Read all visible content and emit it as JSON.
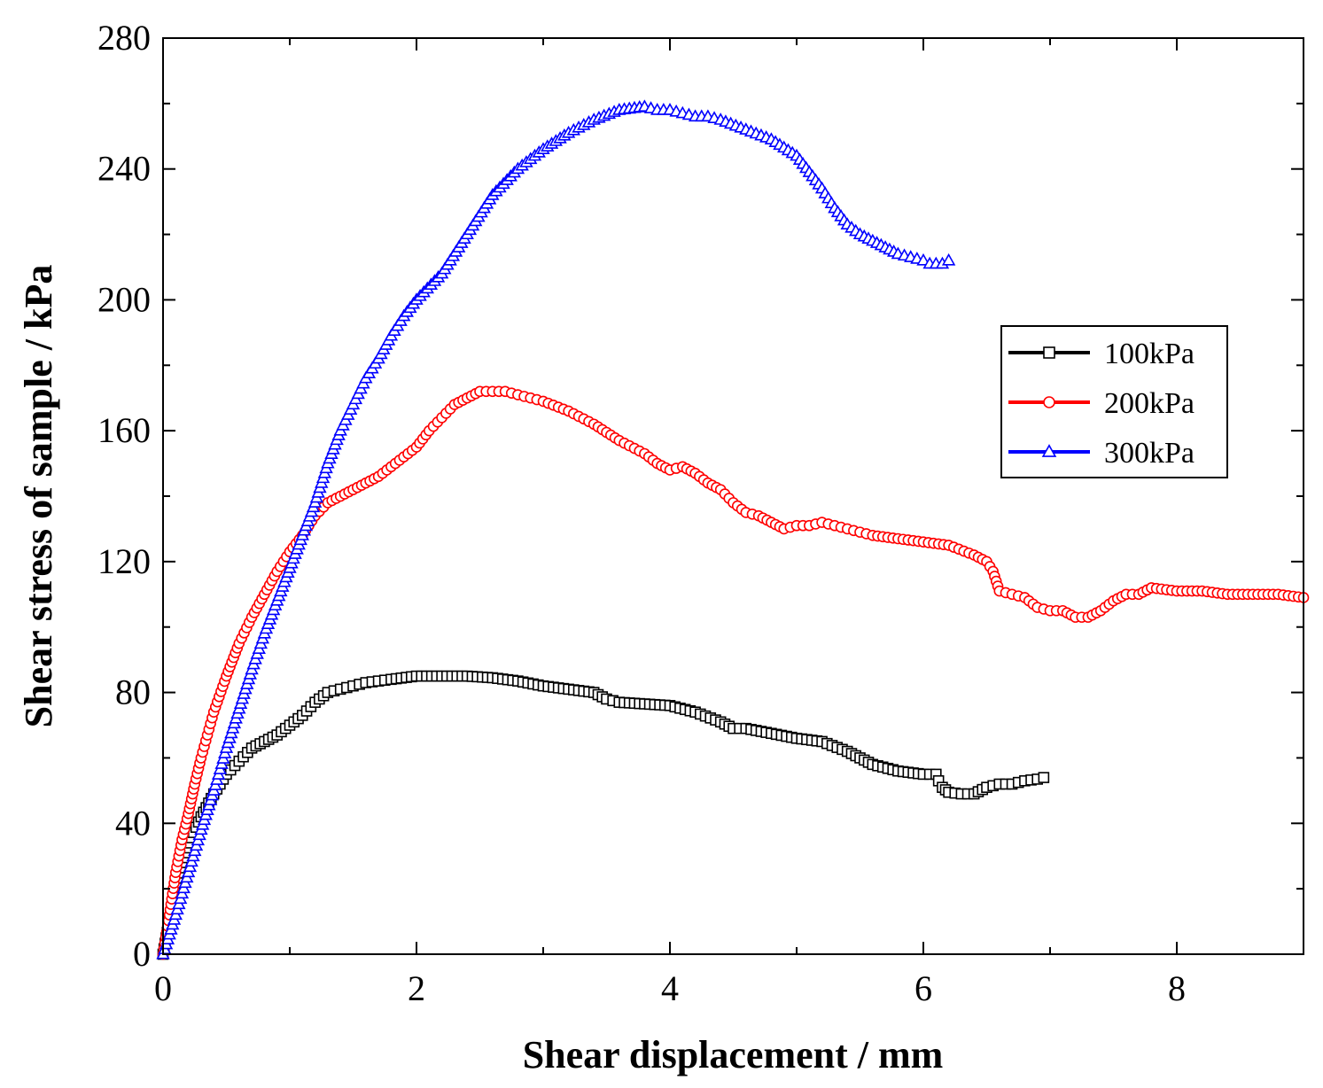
{
  "chart_data": {
    "type": "line",
    "title": "",
    "xlabel": "Shear displacement / mm",
    "ylabel": "Shear stress of sample / kPa",
    "xlim": [
      0,
      9
    ],
    "ylim": [
      0,
      280
    ],
    "xticks": [
      0,
      2,
      4,
      6,
      8
    ],
    "yticks": [
      0,
      40,
      80,
      120,
      160,
      200,
      240,
      280
    ],
    "grid": false,
    "legend_position": "right-upper",
    "series": [
      {
        "name": "100kPa",
        "color": "#000000",
        "marker": "square",
        "x": [
          0,
          0.05,
          0.1,
          0.15,
          0.2,
          0.3,
          0.4,
          0.5,
          0.6,
          0.7,
          0.8,
          0.9,
          1.0,
          1.1,
          1.2,
          1.3,
          1.4,
          1.5,
          1.6,
          1.7,
          1.8,
          2.0,
          2.2,
          2.4,
          2.6,
          2.8,
          3.0,
          3.2,
          3.4,
          3.5,
          3.6,
          3.8,
          4.0,
          4.2,
          4.4,
          4.5,
          4.6,
          4.8,
          5.0,
          5.2,
          5.4,
          5.5,
          5.6,
          5.8,
          6.0,
          6.05,
          6.1,
          6.12,
          6.15,
          6.2,
          6.3,
          6.35,
          6.4,
          6.5,
          6.6,
          6.7,
          6.8,
          6.9,
          6.95
        ],
        "y": [
          0,
          10,
          20,
          28,
          34,
          42,
          49,
          55,
          59,
          63,
          65,
          67,
          70,
          73,
          77,
          80,
          81,
          82,
          83,
          83.5,
          84,
          85,
          85,
          85,
          84.5,
          83.5,
          82,
          81,
          80,
          78,
          77,
          76.5,
          76,
          74,
          71,
          69,
          69,
          67.5,
          66,
          65,
          62,
          60,
          58,
          56,
          55,
          55,
          55,
          53,
          51,
          49.5,
          49,
          49,
          49,
          51,
          52,
          52,
          53,
          53.5,
          54
        ]
      },
      {
        "name": "200kPa",
        "color": "#ff0000",
        "marker": "circle",
        "x": [
          0,
          0.05,
          0.1,
          0.15,
          0.2,
          0.25,
          0.3,
          0.35,
          0.4,
          0.5,
          0.6,
          0.7,
          0.8,
          0.9,
          1.0,
          1.1,
          1.2,
          1.3,
          1.4,
          1.5,
          1.6,
          1.7,
          1.8,
          1.9,
          2.0,
          2.1,
          2.2,
          2.3,
          2.4,
          2.5,
          2.6,
          2.7,
          2.8,
          2.9,
          3.0,
          3.2,
          3.4,
          3.6,
          3.8,
          3.9,
          4.0,
          4.1,
          4.2,
          4.3,
          4.4,
          4.5,
          4.6,
          4.7,
          4.8,
          4.9,
          5.0,
          5.1,
          5.2,
          5.3,
          5.4,
          5.5,
          5.6,
          5.8,
          6.0,
          6.2,
          6.4,
          6.5,
          6.55,
          6.6,
          6.7,
          6.8,
          6.9,
          7.0,
          7.1,
          7.2,
          7.3,
          7.4,
          7.5,
          7.6,
          7.7,
          7.8,
          8.0,
          8.2,
          8.4,
          8.6,
          8.8,
          9.0
        ],
        "y": [
          0,
          12,
          25,
          35,
          43,
          52,
          60,
          67,
          74,
          85,
          95,
          103,
          110,
          117,
          123,
          128,
          134,
          138,
          140,
          142,
          144,
          146,
          149,
          152,
          155,
          160,
          164,
          168,
          170,
          172,
          172,
          172,
          171,
          170,
          169,
          166,
          162,
          157,
          153,
          150,
          148,
          149,
          147,
          144,
          142,
          138,
          135,
          134,
          132,
          130,
          131,
          131,
          132,
          131,
          130,
          129,
          128,
          127,
          126,
          125,
          122,
          120,
          117,
          111,
          110,
          109,
          106,
          105,
          105,
          103,
          103,
          105,
          108,
          110,
          110,
          112,
          111,
          111,
          110,
          110,
          110,
          109
        ]
      },
      {
        "name": "300kPa",
        "color": "#0000ff",
        "marker": "triangle",
        "x": [
          0,
          0.1,
          0.2,
          0.3,
          0.4,
          0.5,
          0.6,
          0.7,
          0.8,
          0.9,
          1.0,
          1.1,
          1.2,
          1.3,
          1.4,
          1.5,
          1.6,
          1.7,
          1.8,
          1.9,
          2.0,
          2.2,
          2.4,
          2.6,
          2.8,
          3.0,
          3.2,
          3.4,
          3.6,
          3.8,
          3.9,
          4.0,
          4.1,
          4.2,
          4.3,
          4.4,
          4.6,
          4.8,
          5.0,
          5.1,
          5.2,
          5.3,
          5.4,
          5.5,
          5.6,
          5.7,
          5.8,
          5.9,
          6.0,
          6.05,
          6.1,
          6.15,
          6.2
        ],
        "y": [
          0,
          12,
          25,
          38,
          50,
          63,
          75,
          87,
          98,
          108,
          118,
          128,
          138,
          150,
          160,
          168,
          176,
          182,
          189,
          195,
          200,
          208,
          220,
          232,
          240,
          246,
          251,
          255,
          258,
          259,
          258,
          258,
          257,
          256,
          256,
          255,
          252,
          249,
          244,
          239,
          234,
          228,
          223,
          220,
          218,
          216,
          214,
          213,
          212,
          211,
          211,
          211,
          212
        ]
      }
    ]
  }
}
